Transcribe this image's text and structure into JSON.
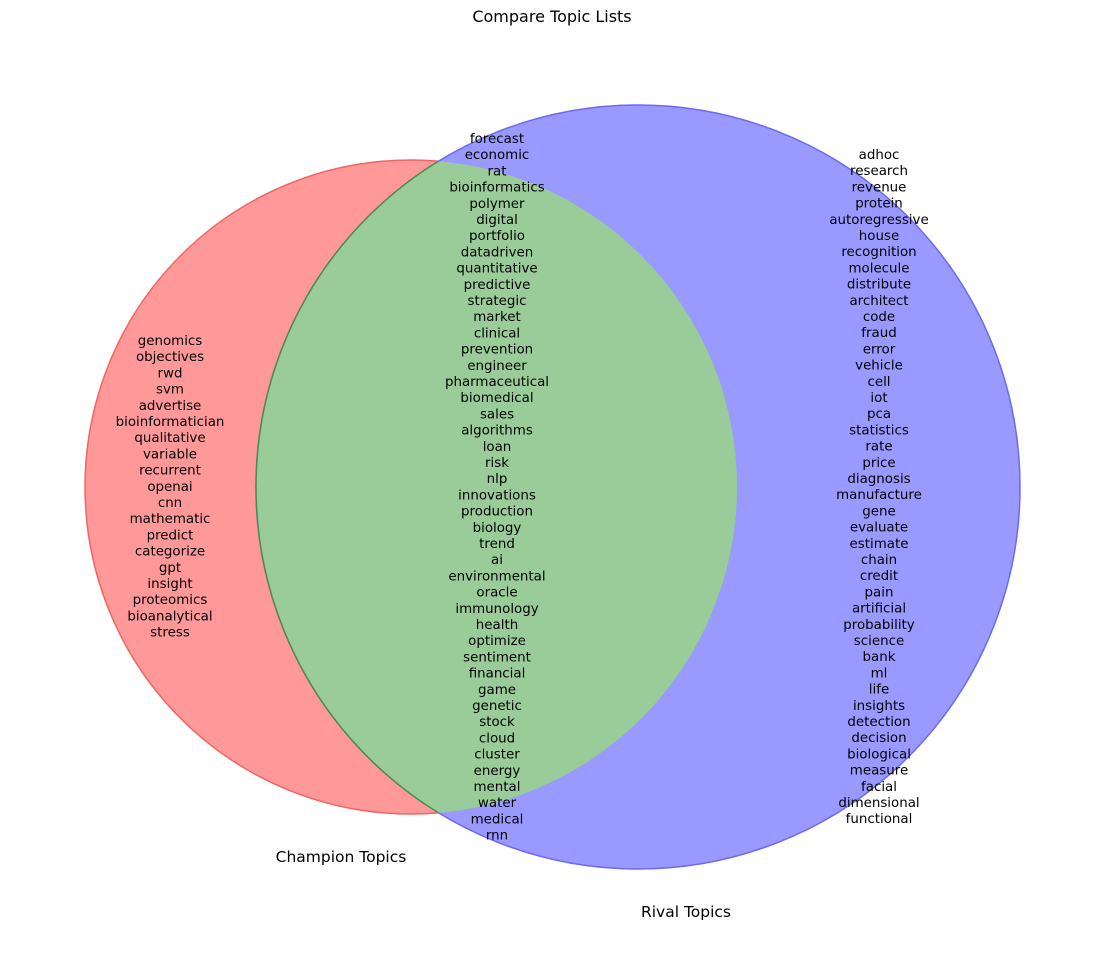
{
  "title": "Compare Topic Lists",
  "colors": {
    "left_fill": "#ff9999",
    "left_stroke": "#f06464",
    "right_fill": "#9999ff",
    "right_stroke": "#6a6af2",
    "overlap_fill": "#99cc99",
    "overlap_stroke": "#4f8a4f"
  },
  "sets": {
    "left": {
      "label": "Champion Topics",
      "only": [
        "genomics",
        "objectives",
        "rwd",
        "svm",
        "advertise",
        "bioinformatician",
        "qualitative",
        "variable",
        "recurrent",
        "openai",
        "cnn",
        "mathematic",
        "predict",
        "categorize",
        "gpt",
        "insight",
        "proteomics",
        "bioanalytical",
        "stress"
      ]
    },
    "right": {
      "label": "Rival Topics",
      "only": [
        "adhoc",
        "research",
        "revenue",
        "protein",
        "autoregressive",
        "house",
        "recognition",
        "molecule",
        "distribute",
        "architect",
        "code",
        "fraud",
        "error",
        "vehicle",
        "cell",
        "iot",
        "pca",
        "statistics",
        "rate",
        "price",
        "diagnosis",
        "manufacture",
        "gene",
        "evaluate",
        "estimate",
        "chain",
        "credit",
        "pain",
        "artificial",
        "probability",
        "science",
        "bank",
        "ml",
        "life",
        "insights",
        "detection",
        "decision",
        "biological",
        "measure",
        "facial",
        "dimensional",
        "functional"
      ]
    },
    "both": [
      "forecast",
      "economic",
      "rat",
      "bioinformatics",
      "polymer",
      "digital",
      "portfolio",
      "datadriven",
      "quantitative",
      "predictive",
      "strategic",
      "market",
      "clinical",
      "prevention",
      "engineer",
      "pharmaceutical",
      "biomedical",
      "sales",
      "algorithms",
      "loan",
      "risk",
      "nlp",
      "innovations",
      "production",
      "biology",
      "trend",
      "ai",
      "environmental",
      "oracle",
      "immunology",
      "health",
      "optimize",
      "sentiment",
      "financial",
      "game",
      "genetic",
      "stock",
      "cloud",
      "cluster",
      "energy",
      "mental",
      "water",
      "medical",
      "rnn"
    ]
  }
}
